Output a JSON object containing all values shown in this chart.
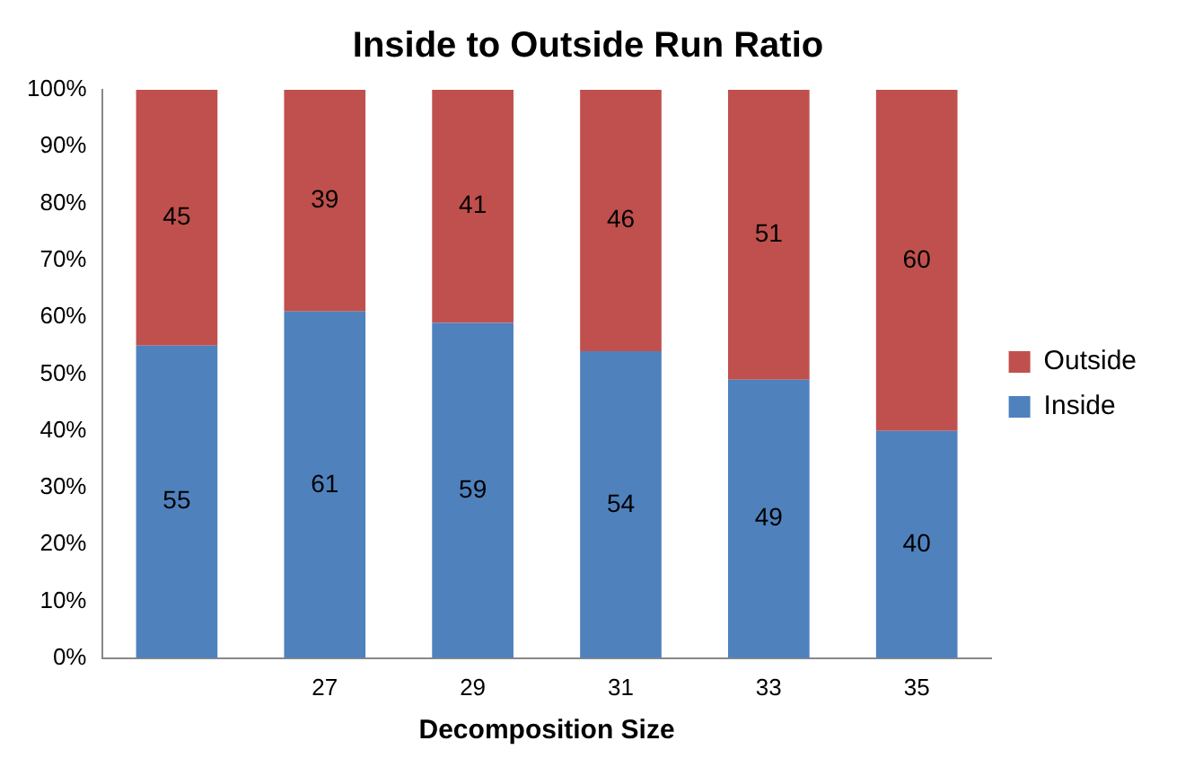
{
  "chart_data": {
    "type": "bar",
    "title": "Inside to Outside Run Ratio",
    "xlabel": "Decomposition Size",
    "categories": [
      null,
      "27",
      "29",
      "31",
      "33",
      "35"
    ],
    "stacked": true,
    "series": [
      {
        "name": "Inside",
        "color": "#4f81bd",
        "values": [
          55,
          61,
          59,
          54,
          49,
          40
        ]
      },
      {
        "name": "Outside",
        "color": "#c0504d",
        "values": [
          45,
          39,
          41,
          46,
          51,
          60
        ]
      }
    ],
    "ylim": [
      0,
      100
    ],
    "yticks": [
      {
        "value": 0,
        "label": "0%"
      },
      {
        "value": 10,
        "label": "10%"
      },
      {
        "value": 20,
        "label": "20%"
      },
      {
        "value": 30,
        "label": "30%"
      },
      {
        "value": 40,
        "label": "40%"
      },
      {
        "value": 50,
        "label": "50%"
      },
      {
        "value": 60,
        "label": "60%"
      },
      {
        "value": 70,
        "label": "70%"
      },
      {
        "value": 80,
        "label": "80%"
      },
      {
        "value": 90,
        "label": "90%"
      },
      {
        "value": 100,
        "label": "100%"
      }
    ],
    "data_labels": true,
    "legend": "right",
    "grid": false
  }
}
